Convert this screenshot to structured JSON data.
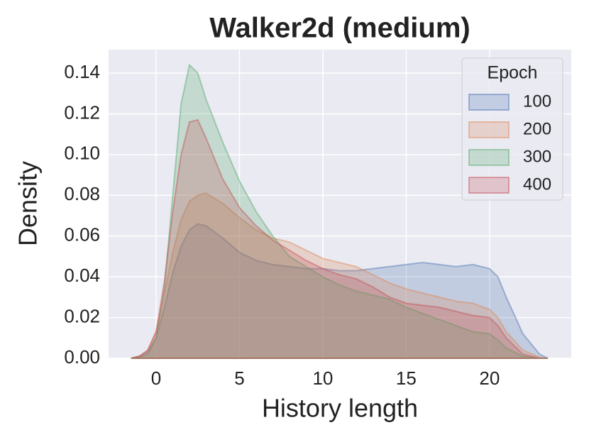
{
  "chart_data": {
    "type": "area",
    "title": "Walker2d (medium)",
    "xlabel": "History length",
    "ylabel": "Density",
    "x": [
      -1.5,
      -1,
      -0.5,
      0,
      0.5,
      1,
      1.5,
      2,
      2.5,
      3,
      4,
      5,
      6,
      7,
      8,
      9,
      10,
      11,
      12,
      13,
      14,
      15,
      16,
      17,
      18,
      19,
      20,
      20.5,
      21,
      22,
      23,
      23.5
    ],
    "legend_title": "Epoch",
    "legend": "upper right",
    "grid": true,
    "series": [
      {
        "name": "100",
        "color": "#4c72b0",
        "values": [
          0,
          0.001,
          0.003,
          0.01,
          0.025,
          0.042,
          0.055,
          0.063,
          0.066,
          0.065,
          0.059,
          0.052,
          0.048,
          0.046,
          0.045,
          0.044,
          0.044,
          0.043,
          0.043,
          0.044,
          0.045,
          0.046,
          0.047,
          0.046,
          0.045,
          0.046,
          0.044,
          0.04,
          0.03,
          0.012,
          0.002,
          0
        ]
      },
      {
        "name": "200",
        "color": "#dd8452",
        "values": [
          0,
          0.001,
          0.004,
          0.013,
          0.032,
          0.052,
          0.068,
          0.077,
          0.08,
          0.081,
          0.076,
          0.069,
          0.063,
          0.059,
          0.057,
          0.053,
          0.049,
          0.047,
          0.045,
          0.041,
          0.037,
          0.034,
          0.032,
          0.03,
          0.028,
          0.027,
          0.024,
          0.02,
          0.013,
          0.004,
          0.0005,
          0
        ]
      },
      {
        "name": "300",
        "color": "#55a868",
        "values": [
          0,
          0.0005,
          0.002,
          0.01,
          0.035,
          0.08,
          0.125,
          0.144,
          0.14,
          0.127,
          0.106,
          0.087,
          0.072,
          0.06,
          0.05,
          0.045,
          0.04,
          0.036,
          0.033,
          0.031,
          0.029,
          0.025,
          0.022,
          0.019,
          0.016,
          0.013,
          0.012,
          0.009,
          0.005,
          0.001,
          0,
          0
        ]
      },
      {
        "name": "400",
        "color": "#c44e52",
        "values": [
          0,
          0.001,
          0.004,
          0.013,
          0.038,
          0.072,
          0.1,
          0.116,
          0.117,
          0.108,
          0.088,
          0.074,
          0.065,
          0.058,
          0.053,
          0.048,
          0.044,
          0.041,
          0.039,
          0.035,
          0.03,
          0.027,
          0.026,
          0.025,
          0.023,
          0.021,
          0.02,
          0.016,
          0.01,
          0.002,
          0,
          0
        ]
      }
    ],
    "xlim": [
      -2.85,
      24.9
    ],
    "ylim": [
      0,
      0.1515
    ],
    "xticks": [
      0,
      5,
      10,
      15,
      20
    ],
    "yticks": [
      {
        "value": 0,
        "label": "0.00"
      },
      {
        "value": 0.02,
        "label": "0.02"
      },
      {
        "value": 0.04,
        "label": "0.04"
      },
      {
        "value": 0.06,
        "label": "0.06"
      },
      {
        "value": 0.08,
        "label": "0.08"
      },
      {
        "value": 0.1,
        "label": "0.10"
      },
      {
        "value": 0.12,
        "label": "0.12"
      },
      {
        "value": 0.14,
        "label": "0.14"
      }
    ]
  }
}
